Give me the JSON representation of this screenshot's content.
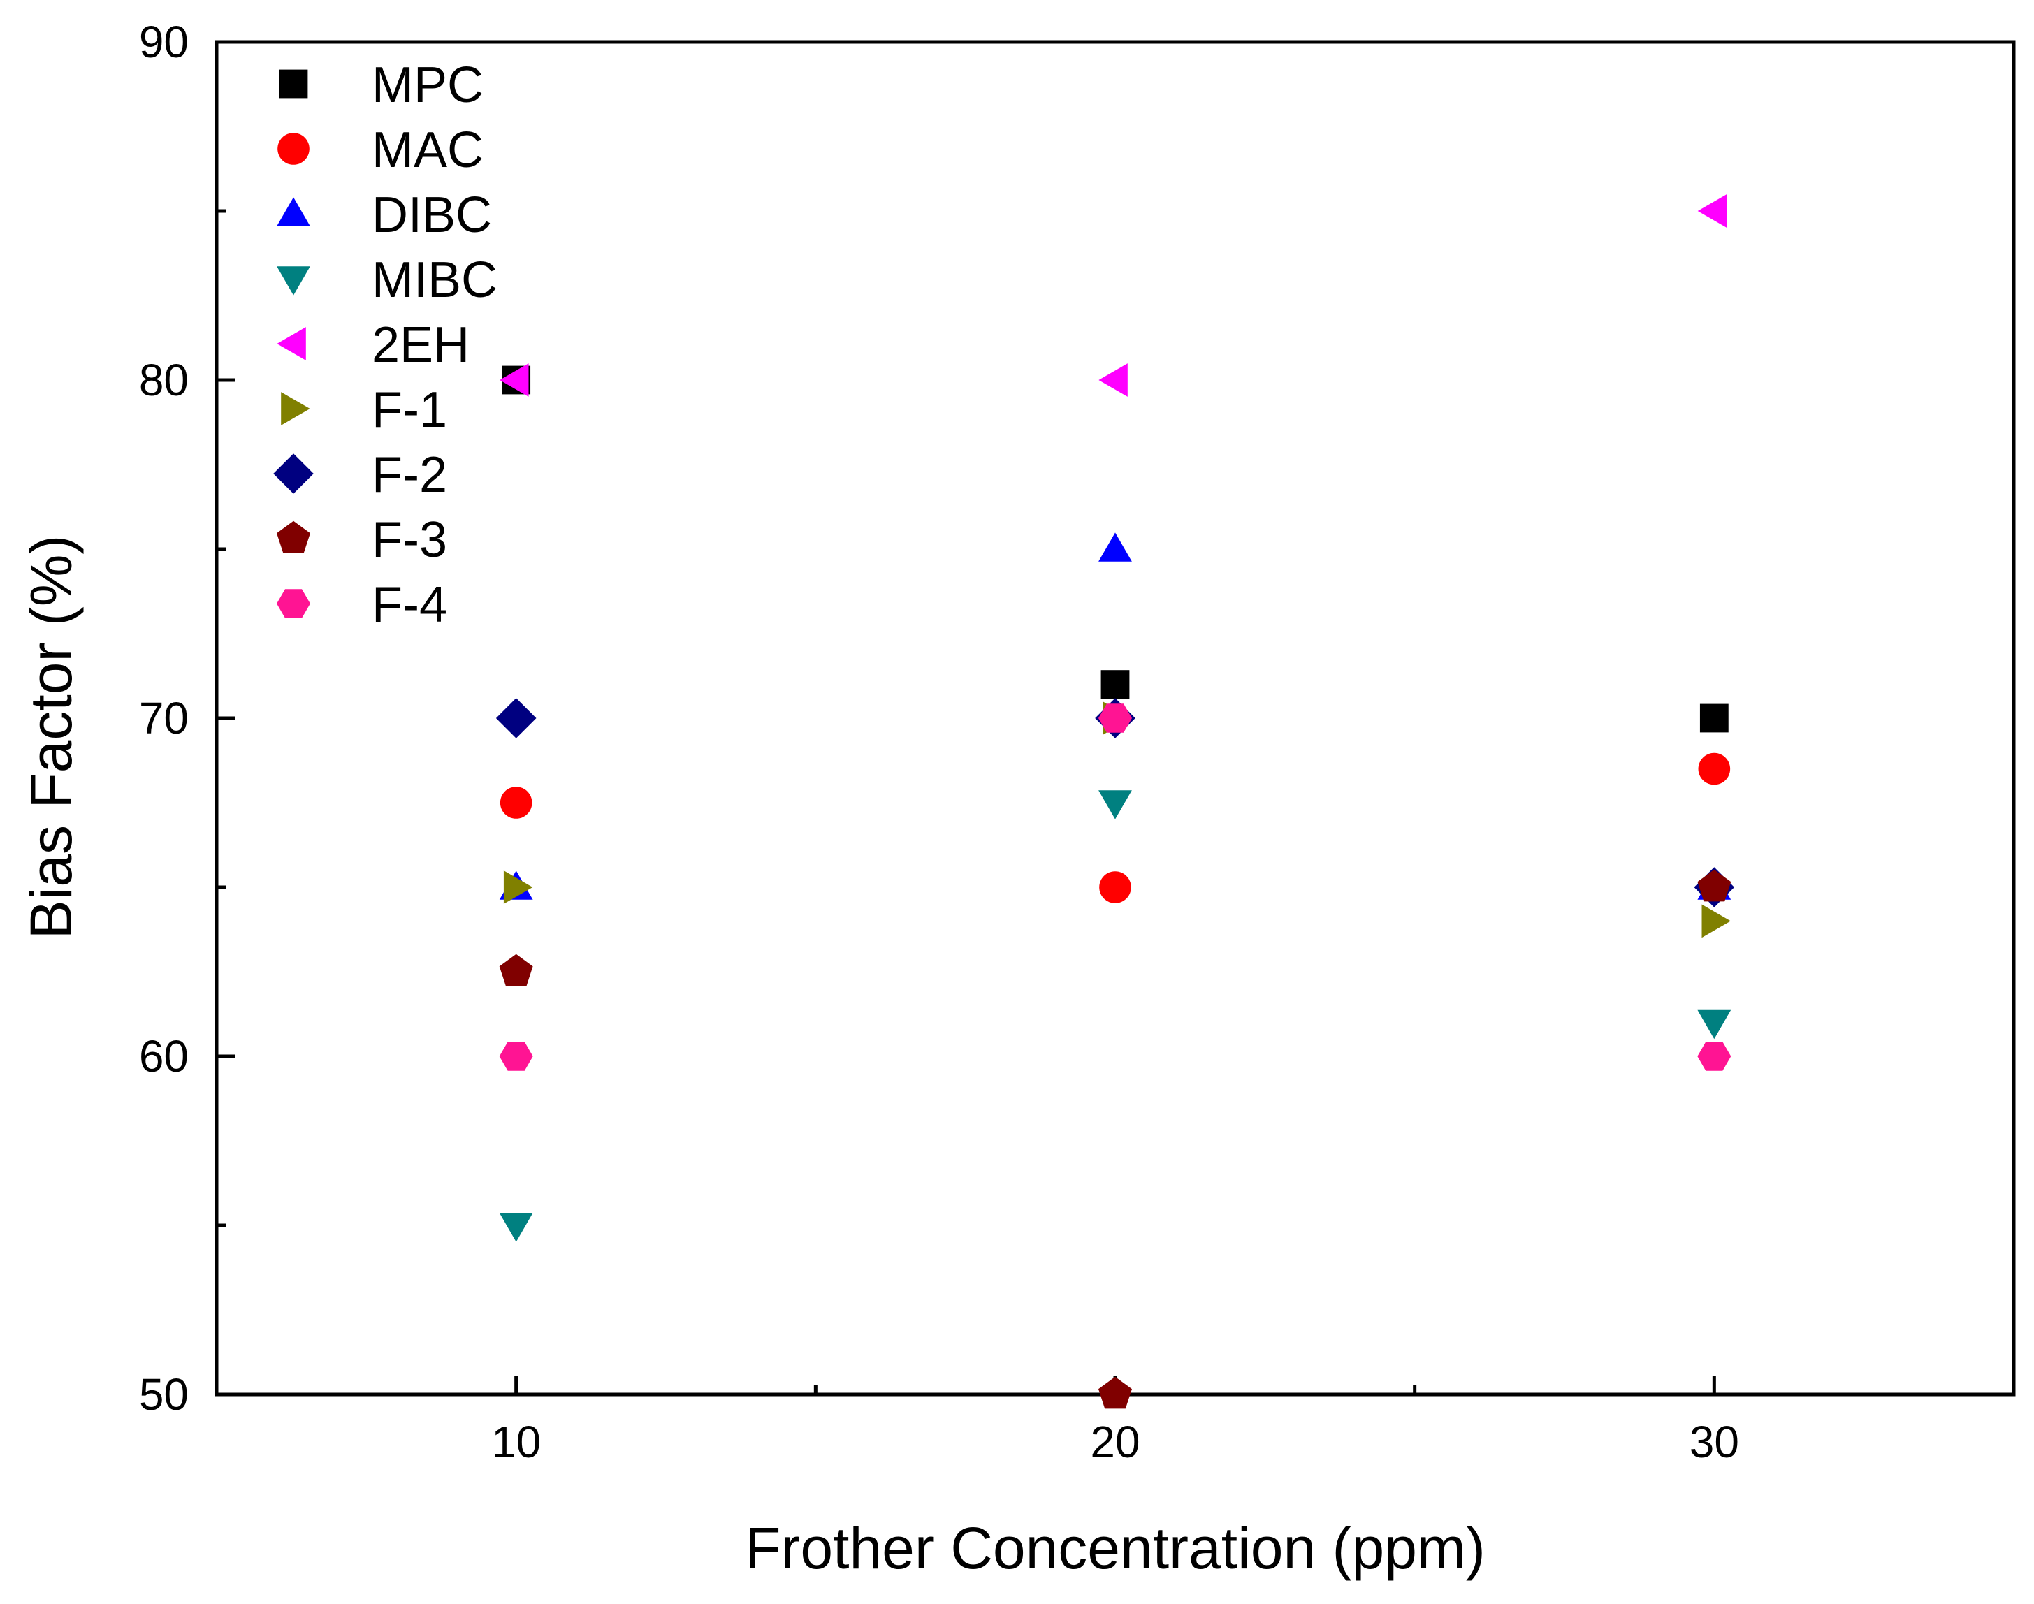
{
  "chart_data": {
    "type": "scatter",
    "title": "",
    "xlabel": "Frother Concentration (ppm)",
    "ylabel": "Bias Factor (%)",
    "xlim": [
      5,
      35
    ],
    "ylim": [
      50,
      90
    ],
    "xticks": [
      10,
      20,
      30
    ],
    "xtick_labels": [
      "10",
      "20",
      "30"
    ],
    "yticks": [
      50,
      60,
      70,
      80,
      90
    ],
    "ytick_labels": [
      "50",
      "60",
      "70",
      "80",
      "90"
    ],
    "yminor_ticks": [
      55,
      65,
      75,
      85
    ],
    "xminor_ticks": [
      15,
      25
    ],
    "grid": false,
    "legend_position": "top-left",
    "series": [
      {
        "name": "MPC",
        "marker": "square",
        "color": "#000000",
        "x": [
          10,
          20,
          30
        ],
        "y": [
          80,
          71,
          70
        ]
      },
      {
        "name": "MAC",
        "marker": "circle",
        "color": "#FF0000",
        "x": [
          10,
          20,
          30
        ],
        "y": [
          67.5,
          65,
          68.5
        ]
      },
      {
        "name": "DIBC",
        "marker": "triangle-up",
        "color": "#0000FF",
        "x": [
          10,
          20,
          30
        ],
        "y": [
          65,
          75,
          65
        ]
      },
      {
        "name": "MIBC",
        "marker": "triangle-down",
        "color": "#008080",
        "x": [
          10,
          20,
          30
        ],
        "y": [
          55,
          67.5,
          61
        ]
      },
      {
        "name": "2EH",
        "marker": "triangle-left",
        "color": "#FF00FF",
        "x": [
          10,
          20,
          30
        ],
        "y": [
          80,
          80,
          85
        ]
      },
      {
        "name": "F-1",
        "marker": "triangle-right",
        "color": "#808000",
        "x": [
          10,
          20,
          30
        ],
        "y": [
          65,
          70,
          64
        ]
      },
      {
        "name": "F-2",
        "marker": "diamond",
        "color": "#000080",
        "x": [
          10,
          20,
          30
        ],
        "y": [
          70,
          70,
          65
        ]
      },
      {
        "name": "F-3",
        "marker": "pentagon",
        "color": "#800000",
        "x": [
          10,
          20,
          30
        ],
        "y": [
          62.5,
          50,
          65
        ]
      },
      {
        "name": "F-4",
        "marker": "hexagon",
        "color": "#FF1493",
        "x": [
          10,
          20,
          30
        ],
        "y": [
          60,
          70,
          60
        ]
      }
    ]
  }
}
